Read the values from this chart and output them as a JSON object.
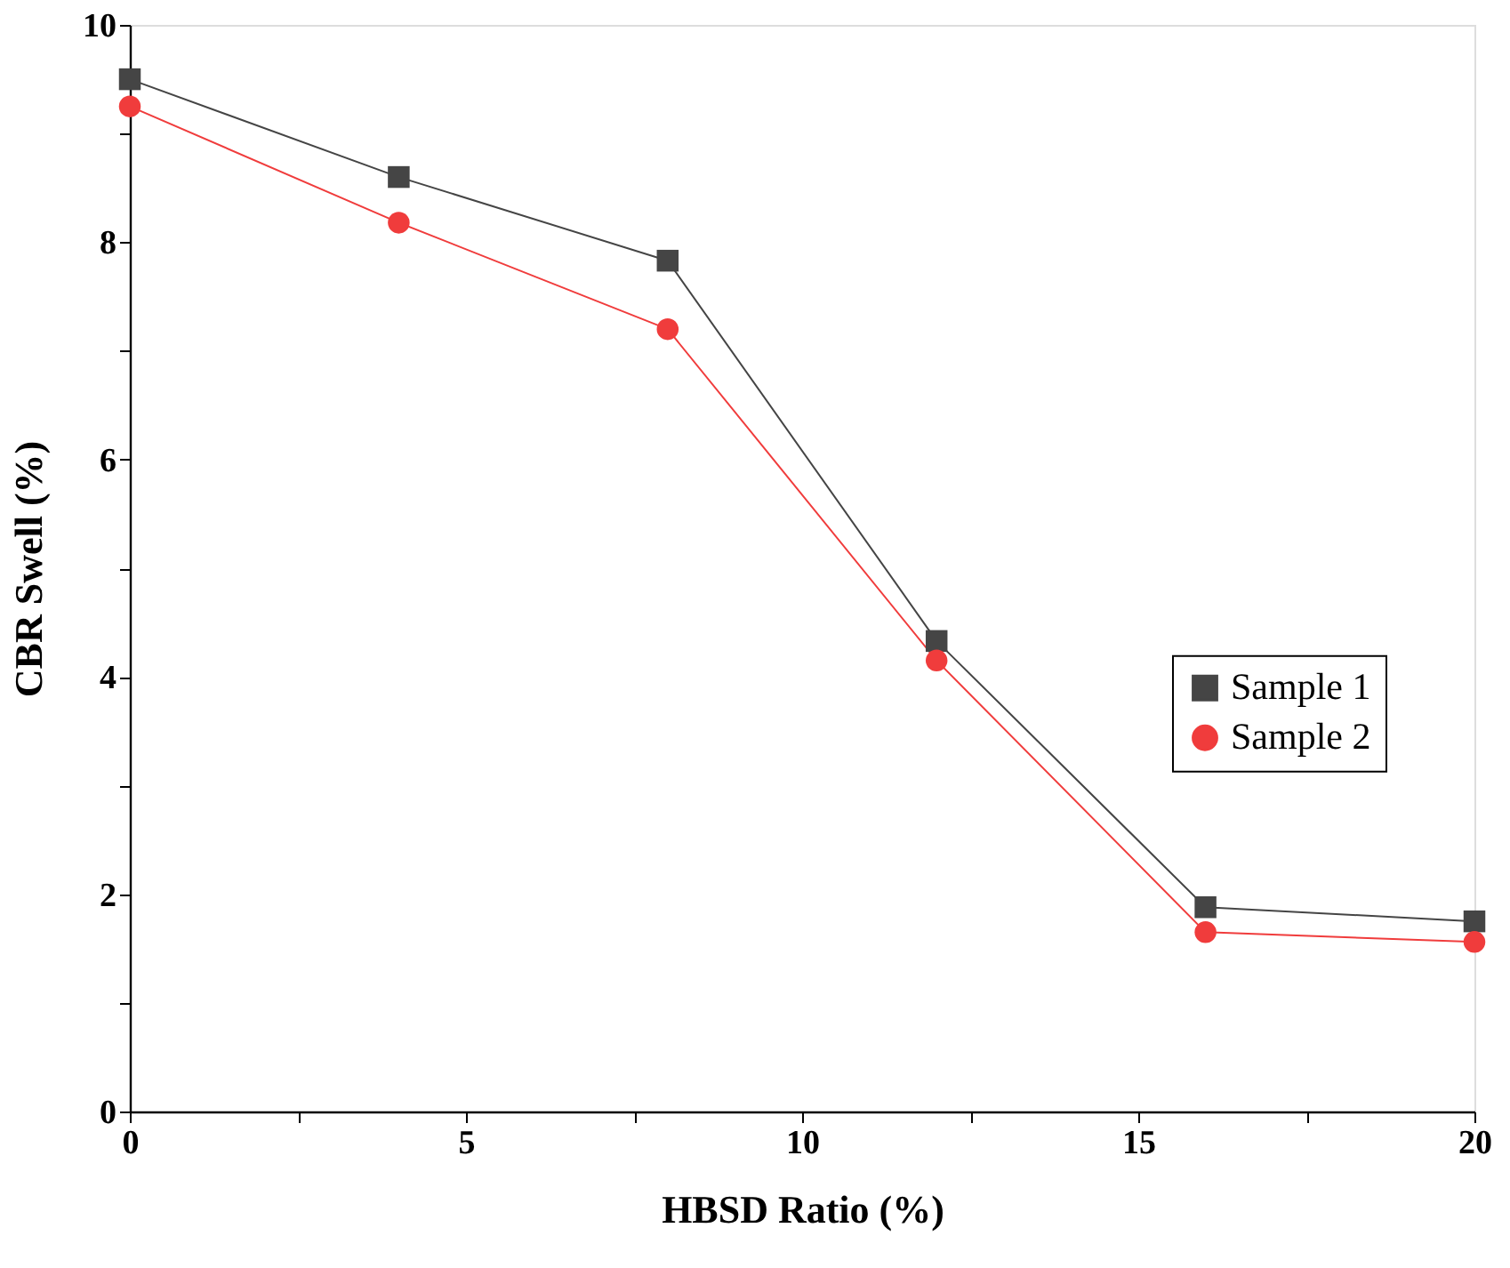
{
  "chart_data": {
    "type": "line",
    "xlabel": "HBSD Ratio (%)",
    "ylabel": "CBR Swell (%)",
    "x": [
      0,
      4,
      8,
      12,
      16,
      20
    ],
    "series": [
      {
        "name": "Sample 1",
        "color": "#454545",
        "marker": "square",
        "values": [
          9.5,
          8.6,
          7.83,
          4.33,
          1.88,
          1.75
        ]
      },
      {
        "name": "Sample 2",
        "color": "#f03c3c",
        "marker": "circle",
        "values": [
          9.25,
          8.18,
          7.2,
          4.15,
          1.65,
          1.56
        ]
      }
    ],
    "xlim": [
      0,
      20
    ],
    "xticks": [
      0,
      {
        "value": 2.5,
        "label": null
      },
      5,
      {
        "value": 7.5,
        "label": null
      },
      10,
      {
        "value": 12.5,
        "label": null
      },
      15,
      {
        "value": 17.5,
        "label": null
      },
      20
    ],
    "ylim": [
      0,
      10
    ],
    "yticks": [
      0,
      {
        "value": 1,
        "label": null
      },
      2,
      {
        "value": 3,
        "label": null
      },
      4,
      {
        "value": 5,
        "label": null
      },
      6,
      {
        "value": 7,
        "label": null
      },
      8,
      {
        "value": 9,
        "label": null
      },
      10
    ],
    "grid": false,
    "legend": "right",
    "line_style": "solid"
  }
}
